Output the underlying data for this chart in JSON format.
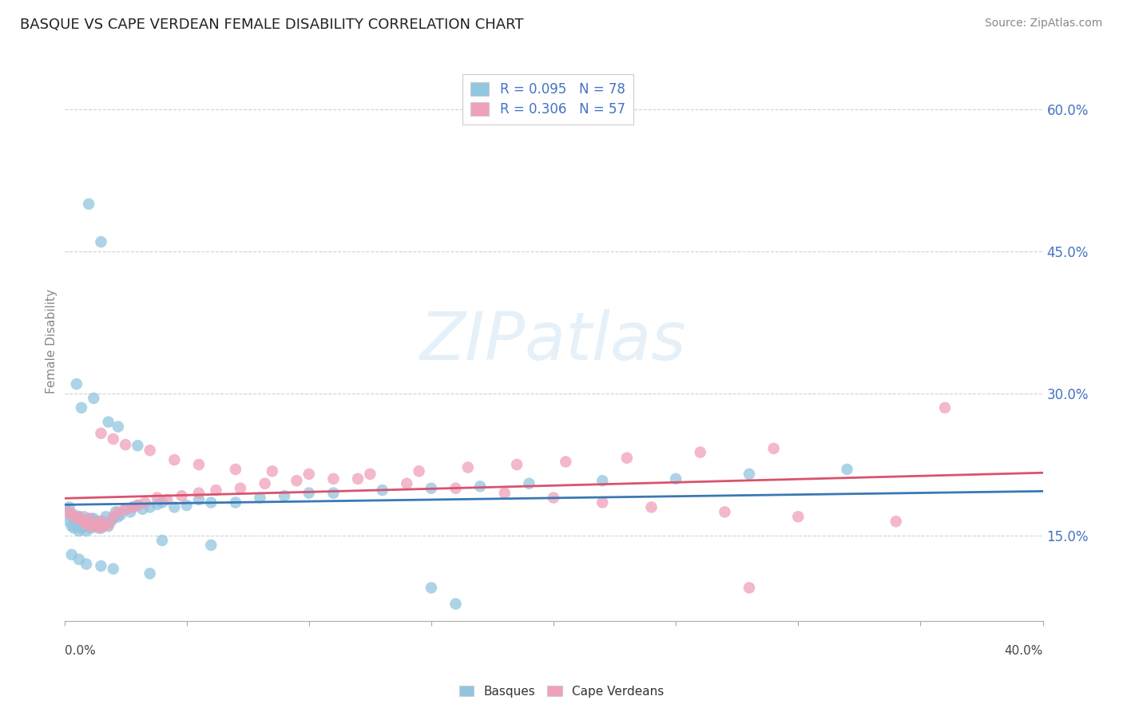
{
  "title": "BASQUE VS CAPE VERDEAN FEMALE DISABILITY CORRELATION CHART",
  "source": "Source: ZipAtlas.com",
  "ylabel": "Female Disability",
  "legend_label1": "Basques",
  "legend_label2": "Cape Verdeans",
  "R1": 0.095,
  "N1": 78,
  "R2": 0.306,
  "N2": 57,
  "color_basque": "#92c5e0",
  "color_capeverdean": "#f0a0b8",
  "color_basque_line": "#3a78b5",
  "color_capeverdean_line": "#d9536e",
  "color_legend_text": "#4472c4",
  "xlim": [
    0.0,
    0.4
  ],
  "ylim": [
    0.06,
    0.65
  ],
  "yticks": [
    0.15,
    0.3,
    0.45,
    0.6
  ],
  "ytick_labels": [
    "15.0%",
    "30.0%",
    "45.0%",
    "60.0%"
  ],
  "basque_x": [
    0.001,
    0.002,
    0.002,
    0.003,
    0.003,
    0.004,
    0.004,
    0.005,
    0.005,
    0.006,
    0.006,
    0.007,
    0.007,
    0.008,
    0.008,
    0.009,
    0.009,
    0.01,
    0.01,
    0.011,
    0.011,
    0.012,
    0.012,
    0.013,
    0.014,
    0.015,
    0.015,
    0.016,
    0.017,
    0.018,
    0.019,
    0.02,
    0.021,
    0.022,
    0.023,
    0.025,
    0.027,
    0.028,
    0.03,
    0.032,
    0.035,
    0.038,
    0.04,
    0.045,
    0.05,
    0.055,
    0.06,
    0.07,
    0.08,
    0.09,
    0.1,
    0.11,
    0.13,
    0.15,
    0.17,
    0.19,
    0.22,
    0.25,
    0.28,
    0.32,
    0.005,
    0.007,
    0.01,
    0.012,
    0.015,
    0.018,
    0.022,
    0.03,
    0.04,
    0.06,
    0.003,
    0.006,
    0.009,
    0.015,
    0.02,
    0.035,
    0.15,
    0.16
  ],
  "basque_y": [
    0.175,
    0.18,
    0.165,
    0.17,
    0.16,
    0.172,
    0.158,
    0.168,
    0.162,
    0.17,
    0.155,
    0.165,
    0.158,
    0.162,
    0.17,
    0.16,
    0.155,
    0.165,
    0.16,
    0.168,
    0.158,
    0.162,
    0.168,
    0.16,
    0.165,
    0.162,
    0.158,
    0.165,
    0.17,
    0.16,
    0.165,
    0.168,
    0.175,
    0.17,
    0.172,
    0.178,
    0.175,
    0.18,
    0.182,
    0.178,
    0.18,
    0.183,
    0.185,
    0.18,
    0.182,
    0.188,
    0.185,
    0.185,
    0.19,
    0.192,
    0.195,
    0.195,
    0.198,
    0.2,
    0.202,
    0.205,
    0.208,
    0.21,
    0.215,
    0.22,
    0.31,
    0.285,
    0.5,
    0.295,
    0.46,
    0.27,
    0.265,
    0.245,
    0.145,
    0.14,
    0.13,
    0.125,
    0.12,
    0.118,
    0.115,
    0.11,
    0.095,
    0.078
  ],
  "capeverdean_x": [
    0.002,
    0.003,
    0.005,
    0.006,
    0.008,
    0.009,
    0.01,
    0.011,
    0.013,
    0.014,
    0.015,
    0.016,
    0.018,
    0.02,
    0.022,
    0.025,
    0.028,
    0.03,
    0.033,
    0.038,
    0.042,
    0.048,
    0.055,
    0.062,
    0.072,
    0.082,
    0.095,
    0.11,
    0.125,
    0.145,
    0.165,
    0.185,
    0.205,
    0.23,
    0.26,
    0.29,
    0.015,
    0.02,
    0.025,
    0.035,
    0.045,
    0.055,
    0.07,
    0.085,
    0.1,
    0.12,
    0.14,
    0.16,
    0.18,
    0.2,
    0.22,
    0.24,
    0.27,
    0.3,
    0.34,
    0.36,
    0.28
  ],
  "capeverdean_y": [
    0.175,
    0.172,
    0.168,
    0.17,
    0.165,
    0.162,
    0.168,
    0.16,
    0.163,
    0.158,
    0.165,
    0.16,
    0.162,
    0.17,
    0.175,
    0.178,
    0.18,
    0.182,
    0.185,
    0.19,
    0.188,
    0.192,
    0.195,
    0.198,
    0.2,
    0.205,
    0.208,
    0.21,
    0.215,
    0.218,
    0.222,
    0.225,
    0.228,
    0.232,
    0.238,
    0.242,
    0.258,
    0.252,
    0.246,
    0.24,
    0.23,
    0.225,
    0.22,
    0.218,
    0.215,
    0.21,
    0.205,
    0.2,
    0.195,
    0.19,
    0.185,
    0.18,
    0.175,
    0.17,
    0.165,
    0.285,
    0.095
  ]
}
